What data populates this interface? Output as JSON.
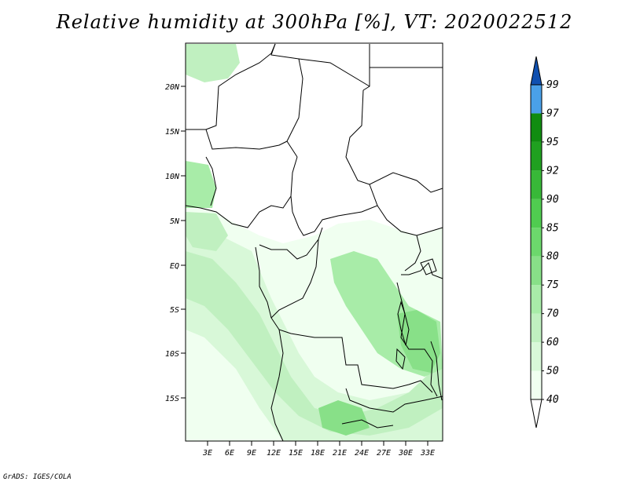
{
  "title": "Relative humidity at 300hPa [%], VT: 2020022512",
  "credit": "GrADS: IGES/COLA",
  "map": {
    "lat_ticks": [
      "20N",
      "15N",
      "10N",
      "5N",
      "EQ",
      "5S",
      "10S",
      "15S"
    ],
    "lon_ticks": [
      "3E",
      "6E",
      "9E",
      "12E",
      "15E",
      "18E",
      "21E",
      "24E",
      "27E",
      "30E",
      "33E"
    ]
  },
  "colorbar": {
    "levels": [
      "40",
      "50",
      "60",
      "70",
      "75",
      "80",
      "85",
      "90",
      "92",
      "95",
      "97",
      "99"
    ],
    "colors": [
      "#f0fff0",
      "#d8f8d8",
      "#c0f0c0",
      "#a8eca8",
      "#88e088",
      "#6cd86c",
      "#50cc50",
      "#38b838",
      "#20a020",
      "#108c10",
      "#4aa0e8",
      "#2878d8",
      "#1050b0"
    ],
    "under_color": "#ffffff"
  }
}
